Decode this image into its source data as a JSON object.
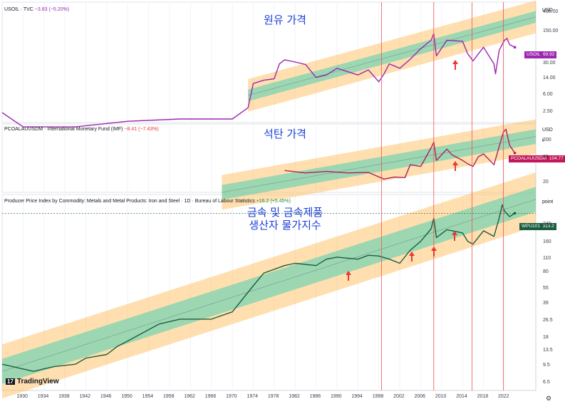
{
  "panels": [
    {
      "legend": "USOIL · TVC",
      "change": "−3.83 (−5.20%)",
      "title": "원유 가격",
      "badge": "USOIL",
      "badge_value": "69.92",
      "scale_label": "USD",
      "color": "#9c27b0",
      "ticks": [
        "400.00",
        "150.00",
        "30.00",
        "14.00",
        "6.00",
        "2.50"
      ]
    },
    {
      "legend": "PCOALAUUSDM · International Monetary Fund (IMF)",
      "change": "−8.41 (−7.43%)",
      "title": "석탄 가격",
      "badge": "PCOALAUUSDM",
      "badge_value": "104.77",
      "scale_label": "USD",
      "scale_sub": "t",
      "color": "#b0205a",
      "ticks": [
        "200",
        "80",
        "20"
      ]
    },
    {
      "legend": "Producer Price Index by Commodity: Metals and Metal Products: Iron and Steel · 1D · Bureau of Labour Statistics",
      "change": "+16.2 (+5.45%)",
      "title_line1": "금속 및 금속제품",
      "title_line2": "생산자 물가지수",
      "badge": "WPU101",
      "badge_value": "313.2",
      "scale_label": "point",
      "color": "#1b5e3f",
      "ticks": [
        "240",
        "160",
        "110",
        "80",
        "55",
        "39",
        "26.5",
        "18",
        "13.5",
        "9.5",
        "6.5"
      ]
    }
  ],
  "x_axis": {
    "labels": [
      "1930",
      "1934",
      "1938",
      "1942",
      "1946",
      "1950",
      "1954",
      "1958",
      "1962",
      "1966",
      "1970",
      "1974",
      "1978",
      "1982",
      "1986",
      "1990",
      "1994",
      "1998",
      "2002",
      "2006",
      "2010",
      "2014",
      "2018",
      "2022"
    ]
  },
  "footer": {
    "logo_text": "TradingView",
    "logo_mark": "17"
  },
  "chart_data": [
    {
      "type": "line",
      "title": "원유 가격",
      "series": [
        {
          "name": "USOIL",
          "x": [
            1926,
            1930,
            1940,
            1950,
            1960,
            1970,
            1973,
            1974,
            1976,
            1978,
            1979,
            1980,
            1982,
            1984,
            1986,
            1988,
            1990,
            1994,
            1996,
            1998,
            1999,
            2000,
            2002,
            2004,
            2006,
            2008,
            2008.5,
            2009,
            2011,
            2014,
            2015,
            2016,
            2018,
            2020,
            2020.3,
            2021,
            2022,
            2022.5,
            2023,
            2024
          ],
          "y": [
            2.5,
            1.2,
            1.2,
            1.6,
            1.8,
            1.8,
            3.2,
            11,
            13,
            14,
            30,
            37,
            33,
            29,
            15,
            17,
            24,
            17,
            22,
            12,
            18,
            30,
            24,
            38,
            65,
            100,
            140,
            45,
            100,
            95,
            50,
            35,
            70,
            30,
            18,
            60,
            100,
            110,
            80,
            69.92
          ]
        }
      ],
      "y_scale": "log",
      "ylim": [
        1.5,
        700
      ]
    },
    {
      "type": "line",
      "title": "석탄 가격",
      "series": [
        {
          "name": "PCOALAUUSDM",
          "x": [
            1980,
            1984,
            1988,
            1992,
            1996,
            1999,
            2001,
            2003,
            2004,
            2006,
            2008,
            2008.5,
            2009,
            2011,
            2012,
            2014,
            2015,
            2016,
            2017,
            2018,
            2020,
            2021,
            2021.8,
            2022.3,
            2023,
            2024
          ],
          "y": [
            40,
            35,
            38,
            35,
            36,
            25,
            28,
            27,
            55,
            50,
            140,
            190,
            70,
            130,
            95,
            70,
            58,
            50,
            85,
            100,
            55,
            150,
            330,
            390,
            160,
            104.77
          ]
        }
      ],
      "y_scale": "log",
      "ylim": [
        12,
        520
      ]
    },
    {
      "type": "line",
      "title": "금속 및 금속제품 생산자 물가지수",
      "series": [
        {
          "name": "WPU101",
          "x": [
            1926,
            1932,
            1934,
            1936,
            1940,
            1942,
            1946,
            1948,
            1950,
            1956,
            1960,
            1966,
            1970,
            1974,
            1976,
            1980,
            1982,
            1986,
            1988,
            1990,
            1994,
            1996,
            1998,
            2000,
            2002,
            2004,
            2006,
            2008,
            2008.5,
            2009,
            2011,
            2014,
            2015,
            2016,
            2018,
            2020,
            2021,
            2021.6,
            2022,
            2023,
            2024
          ],
          "y": [
            10,
            8.5,
            9,
            9.5,
            10,
            11.5,
            12.5,
            15,
            17,
            25,
            28,
            28,
            33,
            60,
            80,
            95,
            100,
            95,
            110,
            115,
            110,
            120,
            118,
            110,
            100,
            135,
            165,
            220,
            280,
            180,
            215,
            200,
            165,
            155,
            210,
            185,
            280,
            380,
            330,
            290,
            313.2
          ]
        }
      ],
      "y_scale": "log",
      "ylim": [
        5.5,
        480
      ]
    }
  ]
}
